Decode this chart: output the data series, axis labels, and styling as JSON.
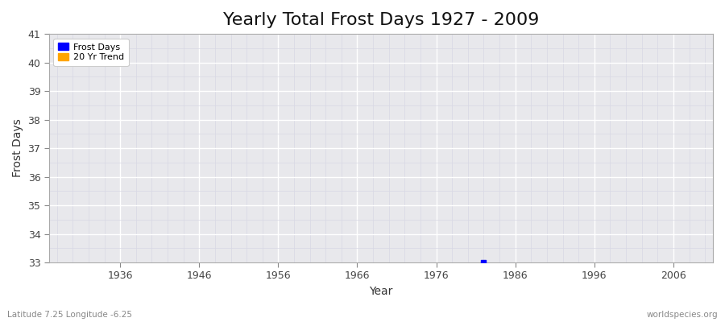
{
  "title": "Yearly Total Frost Days 1927 - 2009",
  "xlabel": "Year",
  "ylabel": "Frost Days",
  "xlim": [
    1927,
    2011
  ],
  "ylim": [
    33,
    41
  ],
  "yticks": [
    33,
    34,
    35,
    36,
    37,
    38,
    39,
    40,
    41
  ],
  "xticks": [
    1936,
    1946,
    1956,
    1966,
    1976,
    1986,
    1996,
    2006
  ],
  "frost_days_x": [
    1982
  ],
  "frost_days_y": [
    33
  ],
  "legend_entries": [
    "Frost Days",
    "20 Yr Trend"
  ],
  "legend_colors": [
    "#0000ff",
    "#ffa500"
  ],
  "dot_color": "#0000ff",
  "dot_size": 15,
  "fig_bg_color": "#ffffff",
  "plot_bg_color": "#e8e8ec",
  "grid_major_color": "#ffffff",
  "grid_minor_color": "#d8d8e4",
  "subtitle_left": "Latitude 7.25 Longitude -6.25",
  "subtitle_right": "worldspecies.org",
  "title_fontsize": 16,
  "axis_label_fontsize": 10,
  "tick_fontsize": 9,
  "legend_fontsize": 8
}
